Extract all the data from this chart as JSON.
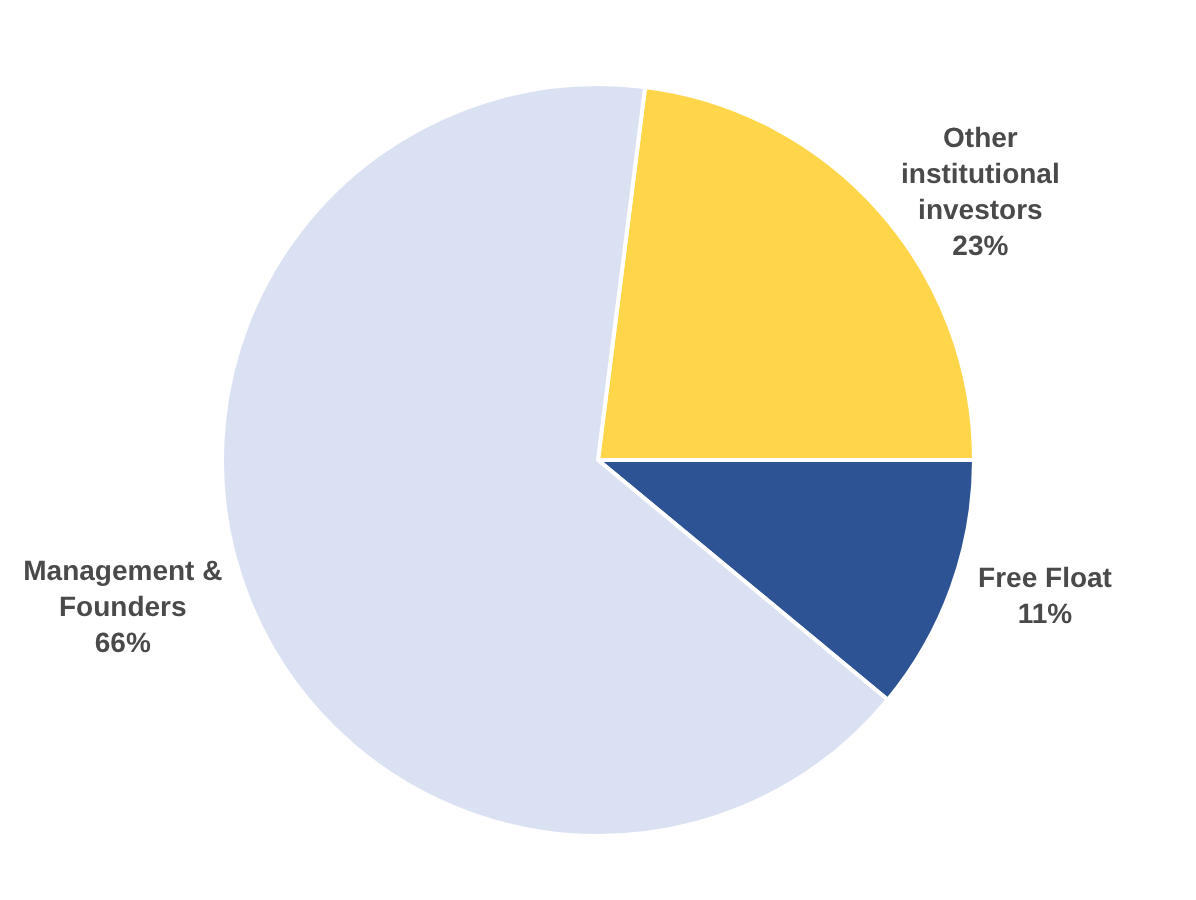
{
  "chart_data": {
    "type": "pie",
    "categories": [
      "Other institutional investors",
      "Free Float",
      "Management & Founders"
    ],
    "values": [
      23,
      11,
      66
    ],
    "colors": [
      "#ffd54a",
      "#2d5395",
      "#d9e1f2"
    ],
    "value_labels": [
      "23%",
      "11%",
      "66%"
    ],
    "legend": false
  }
}
